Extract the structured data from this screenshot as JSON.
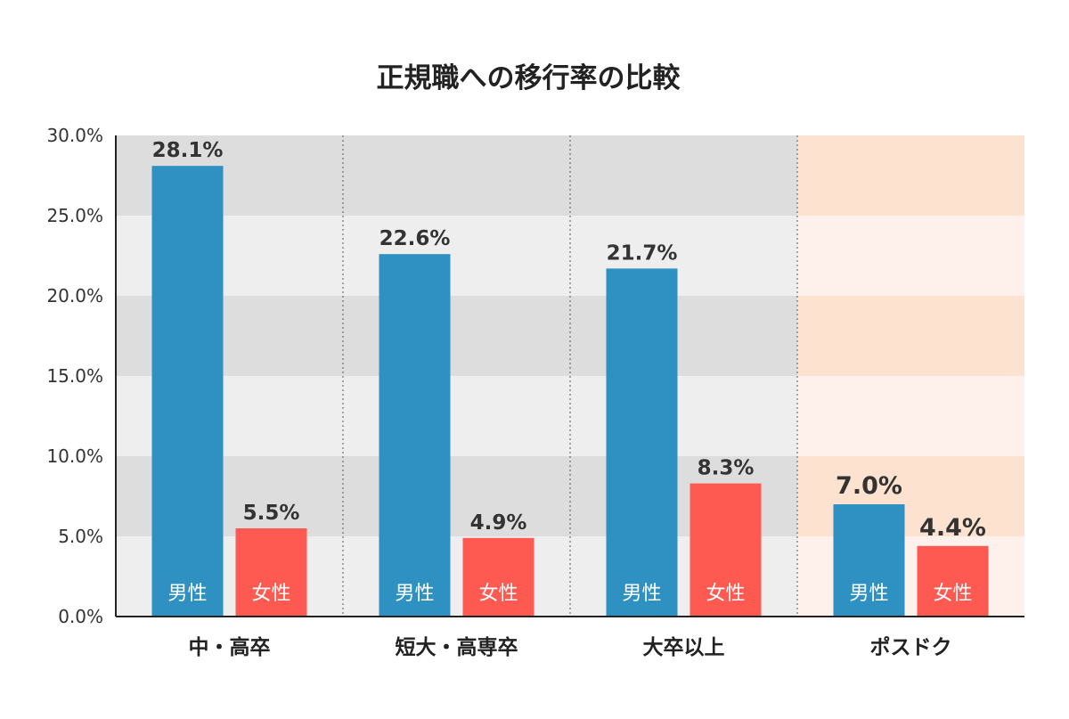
{
  "chart_data": {
    "type": "bar",
    "title": "正規職への移行率の比較",
    "categories": [
      "中・高卒",
      "短大・高専卒",
      "大卒以上",
      "ポスドク"
    ],
    "highlight_category": "ポスドク",
    "series": [
      {
        "name": "男性",
        "values": [
          28.1,
          22.6,
          21.7,
          7.0
        ],
        "value_labels": [
          "28.1%",
          "22.6%",
          "21.7%",
          "7.0%"
        ]
      },
      {
        "name": "女性",
        "values": [
          5.5,
          4.9,
          8.3,
          4.4
        ],
        "value_labels": [
          "5.5%",
          "4.9%",
          "8.3%",
          "4.4%"
        ]
      }
    ],
    "yticks": [
      0,
      5,
      10,
      15,
      20,
      25,
      30
    ],
    "ytick_labels": [
      "0.0%",
      "5.0%",
      "10.0%",
      "15.0%",
      "20.0%",
      "25.0%",
      "30.0%"
    ],
    "ylim": [
      0,
      30
    ],
    "xlabel": "",
    "ylabel": "",
    "legend": "none (series names shown inside bars)",
    "grid": "alternating horizontal bands",
    "colors": {
      "male": "#2f90c2",
      "female": "#fe5a52",
      "highlight_text": "#f07a1e",
      "band_dark": "#dddddd",
      "band_light": "#eeeeee",
      "band_dark_highlight": "#fde2cf",
      "band_light_highlight": "#fef1eb",
      "axis": "#222222"
    }
  }
}
